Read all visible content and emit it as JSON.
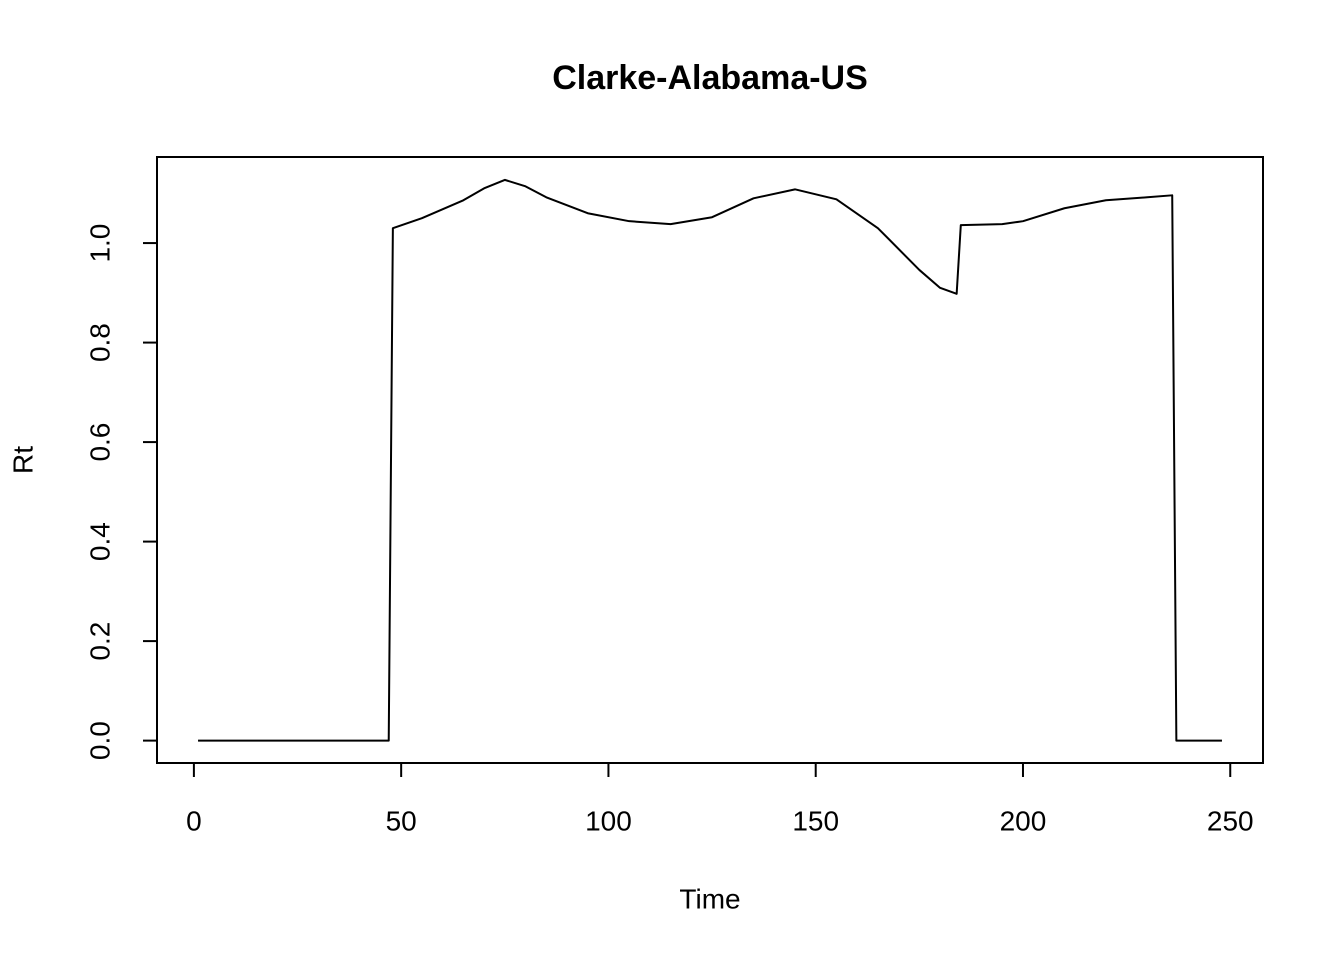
{
  "chart_data": {
    "type": "line",
    "title": "Clarke-Alabama-US",
    "xlabel": "Time",
    "ylabel": "Rt",
    "x": [
      1,
      47,
      48,
      55,
      65,
      70,
      75,
      80,
      85,
      95,
      105,
      115,
      125,
      135,
      145,
      155,
      165,
      175,
      180,
      184,
      185,
      195,
      200,
      210,
      220,
      230,
      236,
      237,
      248
    ],
    "series": [
      {
        "name": "Rt",
        "color": "#000000",
        "values": [
          0,
          0,
          1.03,
          1.05,
          1.086,
          1.11,
          1.127,
          1.114,
          1.092,
          1.06,
          1.044,
          1.038,
          1.052,
          1.09,
          1.108,
          1.088,
          1.03,
          0.946,
          0.91,
          0.898,
          1.036,
          1.038,
          1.044,
          1.07,
          1.086,
          1.092,
          1.096,
          0,
          0
        ]
      }
    ],
    "xlim": [
      -8.9,
      257.9
    ],
    "xticks": [
      0,
      50,
      100,
      150,
      200,
      250
    ],
    "ylim": [
      -0.045,
      1.173
    ],
    "yticks": [
      {
        "value": 0,
        "label": "0.0"
      },
      0.2,
      0.4,
      0.6,
      0.8,
      {
        "value": 1,
        "label": "1.0"
      }
    ],
    "grid": false
  }
}
